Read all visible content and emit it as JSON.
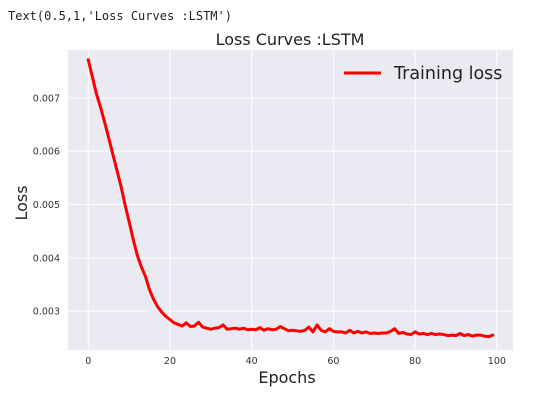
{
  "output": {
    "text": "Text(0.5,1,'Loss Curves :LSTM')"
  },
  "chart_data": {
    "type": "line",
    "title": "Loss Curves :LSTM",
    "xlabel": "Epochs",
    "ylabel": "Loss",
    "xlim": [
      -4.95,
      103.95
    ],
    "ylim": [
      0.00227,
      0.0079
    ],
    "x_ticks": [
      0,
      20,
      40,
      60,
      80,
      100
    ],
    "x_tick_labels": [
      "0",
      "20",
      "40",
      "60",
      "80",
      "100"
    ],
    "y_ticks": [
      0.003,
      0.004,
      0.005,
      0.006,
      0.007
    ],
    "y_tick_labels": [
      "0.003",
      "0.004",
      "0.005",
      "0.006",
      "0.007"
    ],
    "grid": true,
    "legend_position": "top-right",
    "background": "#eaeaf2",
    "series": [
      {
        "name": "Training loss",
        "color": "#ff0000",
        "x": [
          0,
          1,
          2,
          3,
          4,
          5,
          6,
          7,
          8,
          9,
          10,
          11,
          12,
          13,
          14,
          15,
          16,
          17,
          18,
          19,
          20,
          21,
          22,
          23,
          24,
          25,
          26,
          27,
          28,
          29,
          30,
          31,
          32,
          33,
          34,
          35,
          36,
          37,
          38,
          39,
          40,
          41,
          42,
          43,
          44,
          45,
          46,
          47,
          48,
          49,
          50,
          51,
          52,
          53,
          54,
          55,
          56,
          57,
          58,
          59,
          60,
          61,
          62,
          63,
          64,
          65,
          66,
          67,
          68,
          69,
          70,
          71,
          72,
          73,
          74,
          75,
          76,
          77,
          78,
          79,
          80,
          81,
          82,
          83,
          84,
          85,
          86,
          87,
          88,
          89,
          90,
          91,
          92,
          93,
          94,
          95,
          96,
          97,
          98,
          99
        ],
        "values": [
          0.00772,
          0.0074,
          0.00708,
          0.00683,
          0.00655,
          0.00625,
          0.00595,
          0.00565,
          0.00535,
          0.005,
          0.00468,
          0.00435,
          0.00405,
          0.00383,
          0.00365,
          0.0034,
          0.00322,
          0.00308,
          0.00298,
          0.0029,
          0.00284,
          0.00278,
          0.00275,
          0.00272,
          0.00278,
          0.00271,
          0.00272,
          0.00279,
          0.0027,
          0.00268,
          0.00266,
          0.00268,
          0.00269,
          0.00274,
          0.00266,
          0.00267,
          0.00268,
          0.00266,
          0.00268,
          0.00265,
          0.00266,
          0.00265,
          0.00269,
          0.00264,
          0.00267,
          0.00265,
          0.00266,
          0.00271,
          0.00267,
          0.00263,
          0.00264,
          0.00263,
          0.00262,
          0.00264,
          0.0027,
          0.00261,
          0.00274,
          0.00264,
          0.00261,
          0.00267,
          0.00262,
          0.00261,
          0.00261,
          0.00259,
          0.00264,
          0.00259,
          0.00262,
          0.00259,
          0.00261,
          0.00258,
          0.00259,
          0.00258,
          0.00259,
          0.00259,
          0.00262,
          0.00267,
          0.00258,
          0.0026,
          0.00257,
          0.00256,
          0.00261,
          0.00257,
          0.00258,
          0.00256,
          0.00258,
          0.00256,
          0.00257,
          0.00256,
          0.00254,
          0.00255,
          0.00254,
          0.00258,
          0.00254,
          0.00256,
          0.00253,
          0.00255,
          0.00255,
          0.00253,
          0.00252,
          0.00255
        ]
      }
    ]
  }
}
